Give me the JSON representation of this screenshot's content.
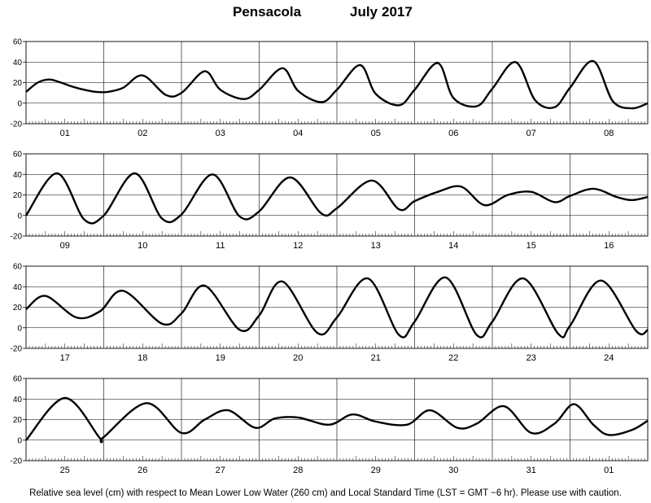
{
  "title": {
    "station": "Pensacola",
    "month": "July",
    "year": "2017"
  },
  "caption": "Relative sea level (cm) with respect to Mean Lower Low Water (260 cm) and Local Standard Time (LST = GMT −6 hr). Please use with caution.",
  "chart_data": [
    {
      "type": "line",
      "panel": 1,
      "ylim": [
        -20,
        60
      ],
      "yticks": [
        -20,
        0,
        20,
        40,
        60
      ],
      "grid": true,
      "day_labels": [
        "01",
        "02",
        "03",
        "04",
        "05",
        "06",
        "07",
        "08"
      ],
      "series": [
        {
          "x": [
            0,
            0.15,
            0.3,
            0.45,
            0.6,
            0.75,
            0.9,
            1.05,
            1.25,
            1.5,
            1.8,
            2.0,
            2.3,
            2.5,
            2.8,
            3.0,
            3.3,
            3.5,
            3.8,
            4.0,
            4.3,
            4.5,
            4.8,
            5.0,
            5.3,
            5.5,
            5.8,
            6.0,
            6.3,
            6.55,
            6.8,
            7.0,
            7.3,
            7.55,
            7.8,
            8.0
          ],
          "y": [
            11,
            20,
            23,
            20,
            16,
            13,
            11,
            11,
            15,
            27,
            8,
            10,
            31,
            13,
            4,
            13,
            34,
            12,
            1,
            13,
            37,
            9,
            -2,
            13,
            39,
            5,
            -3,
            14,
            40,
            3,
            -4,
            15,
            41,
            2,
            -5,
            0
          ]
        }
      ]
    },
    {
      "type": "line",
      "panel": 2,
      "ylim": [
        -20,
        60
      ],
      "yticks": [
        -20,
        0,
        20,
        40,
        60
      ],
      "grid": true,
      "day_labels": [
        "09",
        "10",
        "11",
        "12",
        "13",
        "14",
        "15",
        "16"
      ],
      "series": [
        {
          "x": [
            0,
            0.4,
            0.75,
            1.0,
            1.4,
            1.75,
            2.0,
            2.4,
            2.75,
            3.0,
            3.4,
            3.8,
            4.0,
            4.45,
            4.8,
            5.0,
            5.3,
            5.6,
            5.9,
            6.2,
            6.5,
            6.8,
            7.0,
            7.3,
            7.6,
            7.8,
            8.0
          ],
          "y": [
            0,
            41,
            -4,
            0,
            41,
            -3,
            1,
            40,
            -1,
            4,
            37,
            2,
            7,
            34,
            6,
            14,
            23,
            28,
            10,
            20,
            23,
            13,
            19,
            26,
            18,
            15,
            18
          ]
        }
      ]
    },
    {
      "type": "line",
      "panel": 3,
      "ylim": [
        -20,
        60
      ],
      "yticks": [
        -20,
        0,
        20,
        40,
        60
      ],
      "grid": true,
      "day_labels": [
        "17",
        "18",
        "19",
        "20",
        "21",
        "22",
        "23",
        "24"
      ],
      "series": [
        {
          "x": [
            0,
            0.25,
            0.65,
            0.95,
            1.25,
            1.75,
            2.0,
            2.3,
            2.75,
            3.0,
            3.3,
            3.75,
            4.0,
            4.4,
            4.8,
            5.0,
            5.4,
            5.8,
            6.0,
            6.4,
            6.85,
            7.0,
            7.4,
            7.85,
            8.0
          ],
          "y": [
            18,
            31,
            10,
            16,
            36,
            4,
            14,
            41,
            -2,
            12,
            45,
            -5,
            10,
            48,
            -7,
            6,
            49,
            -7,
            6,
            48,
            -6,
            2,
            46,
            -3,
            -2
          ]
        }
      ]
    },
    {
      "type": "line",
      "panel": 4,
      "ylim": [
        -20,
        60
      ],
      "yticks": [
        -20,
        0,
        20,
        40,
        60
      ],
      "grid": true,
      "day_labels": [
        "25",
        "26",
        "27",
        "28",
        "29",
        "30",
        "31",
        "01"
      ],
      "series": [
        {
          "x": [
            0,
            0.5,
            0.95,
            1.0,
            1.55,
            2.0,
            2.3,
            2.6,
            2.95,
            3.2,
            3.5,
            3.9,
            4.2,
            4.5,
            4.9,
            5.2,
            5.55,
            5.8,
            6.15,
            6.5,
            6.8,
            7.05,
            7.3,
            7.5,
            7.8,
            8.0
          ],
          "y": [
            0,
            41,
            2,
            3,
            36,
            7,
            20,
            29,
            12,
            21,
            22,
            15,
            25,
            18,
            15,
            29,
            12,
            16,
            33,
            7,
            16,
            35,
            15,
            5,
            10,
            19
          ]
        }
      ]
    }
  ]
}
